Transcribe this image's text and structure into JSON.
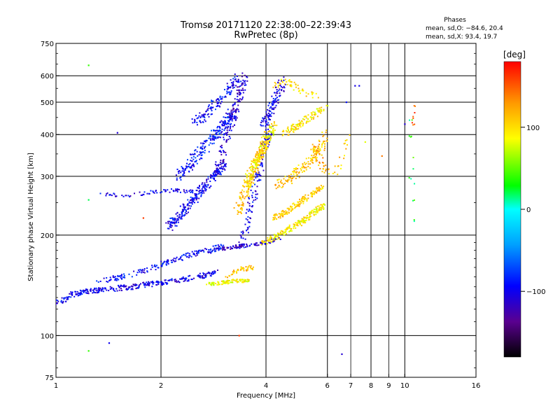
{
  "chart_data": {
    "type": "scatter",
    "title": "Tromsø 20171120 22:38:00–22:39:43",
    "subtitle": "RwPretec (8p)",
    "xlabel": "Frequency [MHz]",
    "ylabel": "Stationary phase Virtual Height [km]",
    "x_scale": "log",
    "y_scale": "log",
    "xlim": [
      1,
      16
    ],
    "ylim": [
      75,
      750
    ],
    "x_ticks": [
      "1",
      "2",
      "4",
      "6",
      "7",
      "8",
      "9",
      "10",
      "16"
    ],
    "x_major_gridlines": [
      2,
      4,
      6,
      8,
      10
    ],
    "x_minor_gridlines": [
      7,
      9
    ],
    "y_ticks": [
      "75",
      "100",
      "200",
      "300",
      "400",
      "500",
      "600",
      "750"
    ],
    "y_gridlines": [
      100,
      200,
      300,
      400,
      500,
      600
    ],
    "grid": true,
    "phase_legend": {
      "title": "Phases",
      "line1": "mean, sd,O: −84.6, 20.4",
      "line2": "mean, sd,X:  93.4, 19.7"
    },
    "colorbar": {
      "label": "[deg]",
      "range": [
        -180,
        180
      ],
      "ticks": [
        "100",
        "0",
        "−100"
      ],
      "tick_values": [
        100,
        0,
        -100
      ]
    },
    "trace_groups": [
      {
        "freq": [
          1.0,
          1.12,
          1.27,
          1.45,
          1.65,
          1.9,
          2.2,
          2.55,
          2.9
        ],
        "height": [
          125,
          133,
          136,
          138,
          140,
          143,
          146,
          150,
          155
        ],
        "spread": 0.03,
        "phase": -100,
        "count": 320
      },
      {
        "freq": [
          1.3,
          1.55,
          1.85,
          2.15,
          2.45,
          2.75,
          3.0
        ],
        "height": [
          145,
          150,
          158,
          168,
          175,
          180,
          185
        ],
        "spread": 0.03,
        "phase": -92,
        "count": 190
      },
      {
        "freq": [
          1.35,
          1.6,
          1.9,
          2.2,
          2.5
        ],
        "height": [
          265,
          262,
          270,
          272,
          270
        ],
        "spread": 0.02,
        "phase": -102,
        "count": 70
      },
      {
        "freq": [
          2.1,
          2.3,
          2.55,
          2.8,
          3.05
        ],
        "height": [
          210,
          235,
          265,
          295,
          330
        ],
        "spread": 0.05,
        "phase": -98,
        "count": 260
      },
      {
        "freq": [
          2.25,
          2.5,
          2.75,
          3.0,
          3.2
        ],
        "height": [
          300,
          340,
          380,
          420,
          460
        ],
        "spread": 0.06,
        "phase": -90,
        "count": 230
      },
      {
        "freq": [
          2.5,
          2.8,
          3.1,
          3.35
        ],
        "height": [
          430,
          480,
          540,
          600
        ],
        "spread": 0.05,
        "phase": -95,
        "count": 130
      },
      {
        "freq": [
          2.9,
          3.05,
          3.2,
          3.35,
          3.5
        ],
        "height": [
          300,
          380,
          450,
          520,
          600
        ],
        "spread": 0.05,
        "phase": -110,
        "count": 150
      },
      {
        "freq": [
          3.4,
          3.6,
          3.8,
          3.95,
          4.1
        ],
        "height": [
          185,
          240,
          300,
          360,
          420
        ],
        "spread": 0.05,
        "phase": -100,
        "count": 140
      },
      {
        "freq": [
          3.9,
          4.1,
          4.3,
          4.5
        ],
        "height": [
          430,
          470,
          520,
          580
        ],
        "spread": 0.05,
        "phase": -100,
        "count": 110
      },
      {
        "freq": [
          3.0,
          3.3,
          3.6,
          4.0,
          4.4
        ],
        "height": [
          182,
          185,
          187,
          190,
          195
        ],
        "spread": 0.02,
        "phase": -112,
        "count": 90
      },
      {
        "freq": [
          2.7,
          3.0,
          3.3,
          3.6
        ],
        "height": [
          142,
          144,
          146,
          146
        ],
        "spread": 0.02,
        "phase": 88,
        "count": 90
      },
      {
        "freq": [
          3.1,
          3.4,
          3.7
        ],
        "height": [
          152,
          158,
          160
        ],
        "spread": 0.03,
        "phase": 112,
        "count": 40
      },
      {
        "freq": [
          3.3,
          3.55,
          3.8,
          4.0
        ],
        "height": [
          230,
          280,
          340,
          400
        ],
        "spread": 0.05,
        "phase": 112,
        "count": 180
      },
      {
        "freq": [
          3.5,
          3.75,
          4.0,
          4.2
        ],
        "height": [
          280,
          330,
          380,
          430
        ],
        "spread": 0.05,
        "phase": 95,
        "count": 150
      },
      {
        "freq": [
          3.9,
          4.3,
          4.7,
          5.1,
          5.5,
          5.85
        ],
        "height": [
          190,
          198,
          210,
          220,
          235,
          245
        ],
        "spread": 0.03,
        "phase": 92,
        "count": 190
      },
      {
        "freq": [
          4.2,
          4.6,
          5.0,
          5.4,
          5.8
        ],
        "height": [
          225,
          235,
          250,
          265,
          280
        ],
        "spread": 0.03,
        "phase": 108,
        "count": 150
      },
      {
        "freq": [
          4.3,
          4.8,
          5.3,
          5.7,
          5.95
        ],
        "height": [
          280,
          300,
          330,
          360,
          400
        ],
        "spread": 0.05,
        "phase": 112,
        "count": 150
      },
      {
        "freq": [
          4.5,
          5.0,
          5.5,
          5.9
        ],
        "height": [
          400,
          430,
          460,
          480
        ],
        "spread": 0.04,
        "phase": 97,
        "count": 110
      },
      {
        "freq": [
          4.1,
          4.6,
          5.1,
          5.6
        ],
        "height": [
          560,
          580,
          540,
          520
        ],
        "spread": 0.04,
        "phase": 102,
        "count": 50
      },
      {
        "freq": [
          5.4,
          5.7,
          6.0
        ],
        "height": [
          370,
          340,
          310
        ],
        "spread": 0.05,
        "phase": 120,
        "count": 40
      },
      {
        "freq": [
          6.3,
          6.6,
          6.8
        ],
        "height": [
          300,
          350,
          400
        ],
        "spread": 0.06,
        "phase": 110,
        "count": 18
      },
      {
        "freq": [
          10.5,
          10.5,
          10.5
        ],
        "height": [
          210,
          300,
          450
        ],
        "spread": 0.04,
        "phase": 30,
        "count": 14
      },
      {
        "freq": [
          10.6,
          10.6
        ],
        "height": [
          420,
          520
        ],
        "spread": 0.03,
        "phase": 160,
        "count": 8
      }
    ],
    "isolated_points": [
      {
        "f": 1.24,
        "h": 645,
        "p": 40
      },
      {
        "f": 1.24,
        "h": 90,
        "p": 40
      },
      {
        "f": 1.42,
        "h": 95,
        "p": -100
      },
      {
        "f": 1.5,
        "h": 405,
        "p": -110
      },
      {
        "f": 1.78,
        "h": 225,
        "p": 160
      },
      {
        "f": 3.35,
        "h": 100,
        "p": 160
      },
      {
        "f": 6.6,
        "h": 88,
        "p": -110
      },
      {
        "f": 7.2,
        "h": 560,
        "p": -105
      },
      {
        "f": 7.4,
        "h": 560,
        "p": -100
      },
      {
        "f": 7.7,
        "h": 380,
        "p": 80
      },
      {
        "f": 8.6,
        "h": 345,
        "p": 140
      },
      {
        "f": 10.0,
        "h": 430,
        "p": -110
      },
      {
        "f": 6.8,
        "h": 500,
        "p": -90
      },
      {
        "f": 1.24,
        "h": 255,
        "p": 20
      }
    ]
  }
}
